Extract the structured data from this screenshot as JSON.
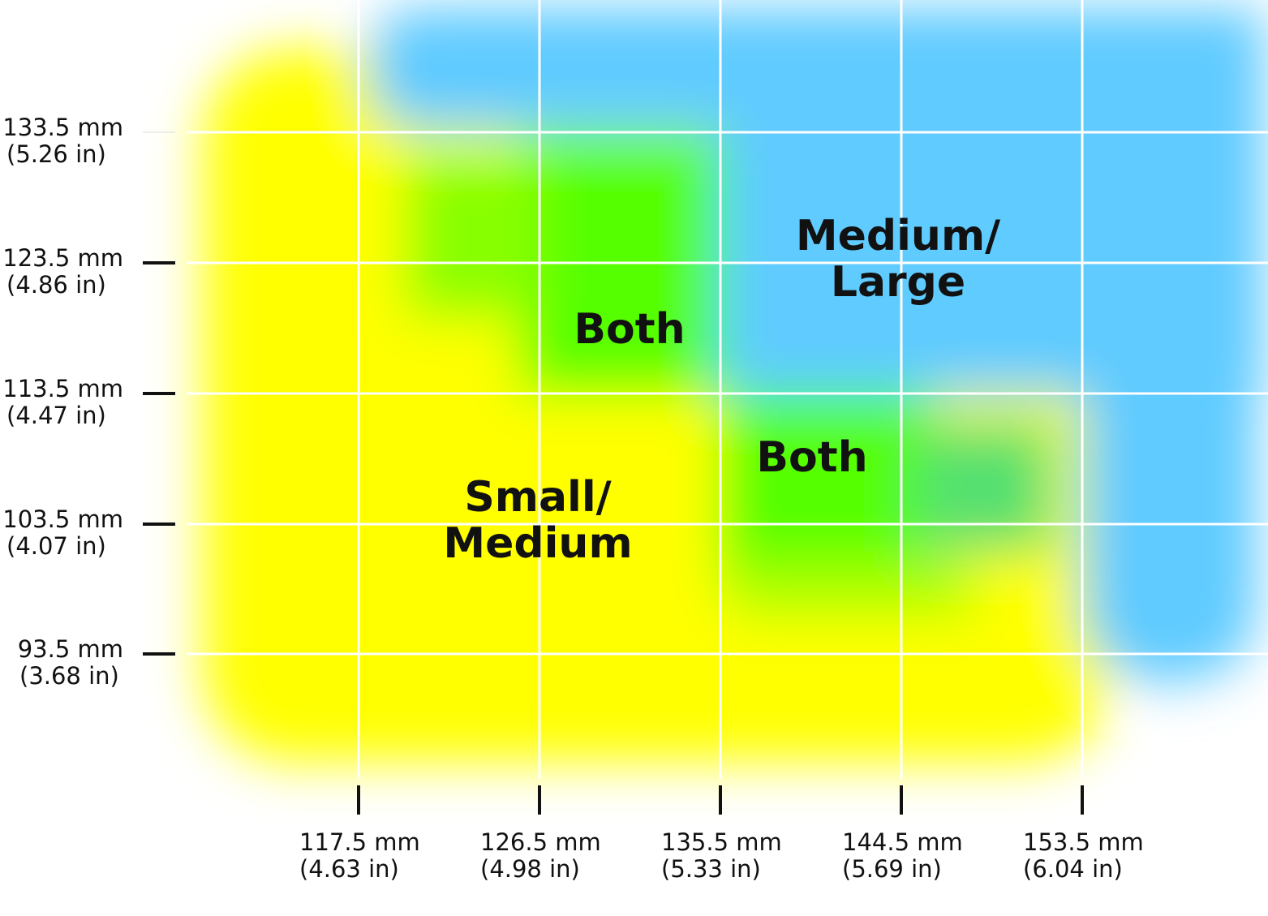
{
  "y_axis": {
    "ticks": [
      {
        "mm": "133.5 mm",
        "in": "(5.26 in)"
      },
      {
        "mm": "123.5 mm",
        "in": "(4.86 in)"
      },
      {
        "mm": "113.5 mm",
        "in": "(4.47 in)"
      },
      {
        "mm": "103.5 mm",
        "in": "(4.07 in)"
      },
      {
        "mm": "93.5 mm",
        "in": "(3.68 in)"
      }
    ]
  },
  "x_axis": {
    "ticks": [
      {
        "mm": "117.5 mm",
        "in": "(4.63 in)"
      },
      {
        "mm": "126.5 mm",
        "in": "(4.98 in)"
      },
      {
        "mm": "135.5 mm",
        "in": "(5.33 in)"
      },
      {
        "mm": "144.5 mm",
        "in": "(5.69 in)"
      },
      {
        "mm": "153.5 mm",
        "in": "(6.04 in)"
      }
    ]
  },
  "regions": [
    {
      "lines": [
        "Medium/",
        "Large"
      ]
    },
    {
      "lines": [
        "Both"
      ]
    },
    {
      "lines": [
        "Both"
      ]
    },
    {
      "lines": [
        "Small/",
        "Medium"
      ]
    }
  ]
}
